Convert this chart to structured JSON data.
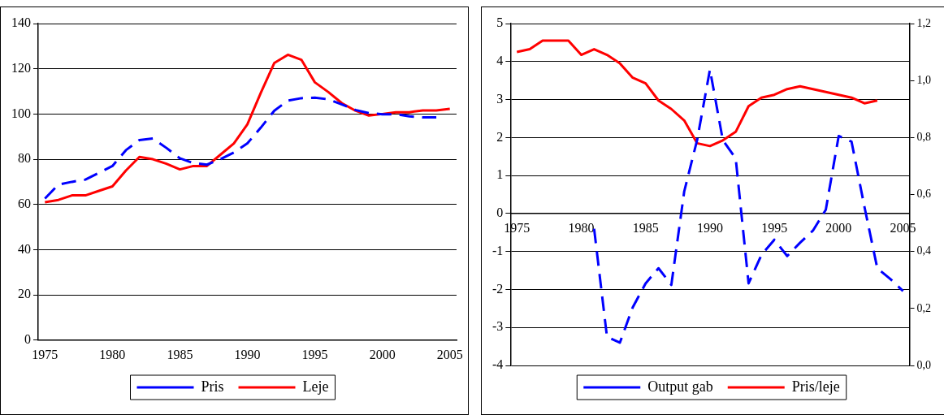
{
  "chart_data": [
    {
      "type": "line",
      "x": [
        1975,
        1976,
        1977,
        1978,
        1979,
        1980,
        1981,
        1982,
        1983,
        1984,
        1985,
        1986,
        1987,
        1988,
        1989,
        1990,
        1991,
        1992,
        1993,
        1994,
        1995,
        1996,
        1997,
        1998,
        1999,
        2000,
        2001,
        2002,
        2003,
        2004,
        2005
      ],
      "series": [
        {
          "name": "Pris",
          "color": "#0000ff",
          "line_style": "dashed",
          "values": [
            62.6,
            68.8,
            70,
            71,
            74,
            77,
            84,
            88.5,
            89.2,
            85,
            80.4,
            78.3,
            77.6,
            80,
            83,
            87,
            94,
            101.5,
            105.9,
            107,
            107.2,
            106.5,
            104.2,
            101.8,
            100.4,
            99.9,
            99.9,
            99,
            98.5,
            98.5,
            null
          ]
        },
        {
          "name": "Leje",
          "color": "#ff0000",
          "line_style": "solid",
          "values": [
            61,
            62,
            64,
            64,
            66,
            68,
            75,
            81,
            80,
            78,
            75.5,
            77,
            77,
            82,
            87,
            95.4,
            109.4,
            122.6,
            126.2,
            124,
            114,
            109.7,
            104.8,
            101.5,
            99.3,
            100,
            100.8,
            100.8,
            101.6,
            101.6,
            102.3
          ]
        }
      ],
      "xlim": [
        1974.5,
        2005.5
      ],
      "xticks": [
        1975,
        1980,
        1985,
        1990,
        1995,
        2000,
        2005
      ],
      "ylim": [
        0,
        140
      ],
      "yticks": [
        0,
        20,
        40,
        60,
        80,
        100,
        120,
        140
      ],
      "grid": "y",
      "legend": "bottom",
      "marker": "none"
    },
    {
      "type": "line",
      "x": [
        1975,
        1976,
        1977,
        1978,
        1979,
        1980,
        1981,
        1982,
        1983,
        1984,
        1985,
        1986,
        1987,
        1988,
        1989,
        1990,
        1991,
        1992,
        1993,
        1994,
        1995,
        1996,
        1997,
        1998,
        1999,
        2000,
        2001,
        2002,
        2003,
        2004,
        2005
      ],
      "series": [
        {
          "name": "Output gab",
          "color": "#0000ff",
          "line_style": "dashed",
          "axis": "y",
          "values": [
            null,
            null,
            null,
            null,
            null,
            null,
            -0.4,
            -3.25,
            -3.4,
            -2.47,
            -1.84,
            -1.44,
            -1.88,
            0.58,
            1.93,
            3.79,
            1.93,
            1.45,
            -1.84,
            -1.09,
            -0.69,
            -1.12,
            -0.77,
            -0.45,
            0.1,
            2.04,
            1.89,
            0.18,
            -1.44,
            -1.72,
            -2.04
          ]
        },
        {
          "name": "Pris/leje",
          "color": "#ff0000",
          "line_style": "solid",
          "axis": "y2",
          "values": [
            1.1,
            1.11,
            1.14,
            1.14,
            1.14,
            1.09,
            1.11,
            1.09,
            1.06,
            1.01,
            0.99,
            0.93,
            0.9,
            0.86,
            0.78,
            0.77,
            0.79,
            0.82,
            0.91,
            0.94,
            0.95,
            0.97,
            0.98,
            0.97,
            0.96,
            0.95,
            0.94,
            0.92,
            0.93,
            null,
            null
          ]
        }
      ],
      "xlim": [
        1974.5,
        2005.5
      ],
      "xticks": [
        1975,
        1980,
        1985,
        1990,
        1995,
        2000,
        2005
      ],
      "ylim": [
        -4,
        5
      ],
      "yticks": [
        -4,
        -3,
        -2,
        -1,
        0,
        1,
        2,
        3,
        4,
        5
      ],
      "y2lim": [
        0,
        1.2
      ],
      "y2ticks": [
        {
          "value": 0,
          "label": "0,0"
        },
        {
          "value": 0.2,
          "label": "0,2"
        },
        {
          "value": 0.4,
          "label": "0,4"
        },
        {
          "value": 0.6,
          "label": "0,6"
        },
        {
          "value": 0.8,
          "label": "0,8"
        },
        {
          "value": 1,
          "label": "1,0"
        },
        {
          "value": 1.2,
          "label": "1,2"
        }
      ],
      "grid": "y",
      "legend": "bottom",
      "marker": "none"
    }
  ]
}
